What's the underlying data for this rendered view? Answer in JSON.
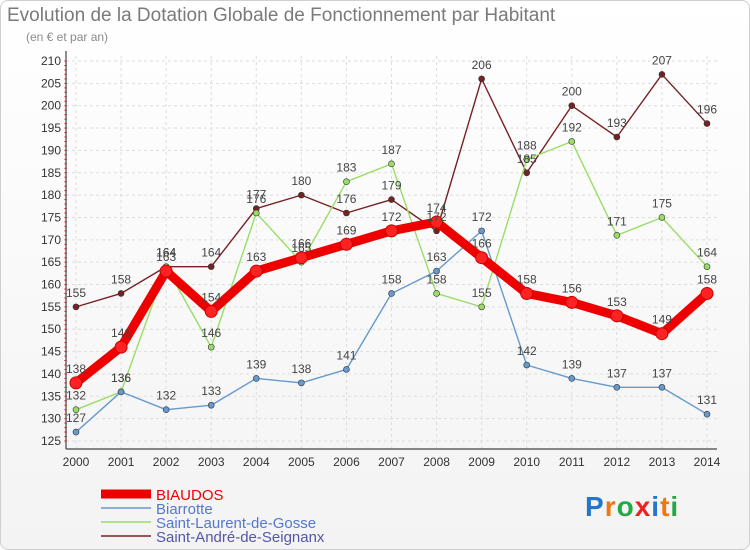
{
  "title": "Evolution de la Dotation Globale de Fonctionnement par Habitant",
  "subtitle": "(en € et par an)",
  "logo_text": "Proxiti",
  "colors": {
    "BIAUDOS": "#ee0000",
    "Biarrotte": "#6699cc",
    "Saint-Laurent-de-Gosse": "#99dd66",
    "Saint-André-de-Seignanx": "#772222"
  },
  "chart_data": {
    "type": "line",
    "title": "Evolution de la Dotation Globale de Fonctionnement par Habitant",
    "ylabel": "(en € et par an)",
    "xlabel": "",
    "x": [
      "2000",
      "2001",
      "2002",
      "2003",
      "2004",
      "2005",
      "2006",
      "2007",
      "2008",
      "2009",
      "2010",
      "2011",
      "2012",
      "2013",
      "2014"
    ],
    "ylim": [
      125,
      210
    ],
    "yticks": [
      125,
      130,
      135,
      140,
      145,
      150,
      155,
      160,
      165,
      170,
      175,
      180,
      185,
      190,
      195,
      200,
      205,
      210
    ],
    "legend_position": "bottom-left",
    "series": [
      {
        "name": "BIAUDOS",
        "values": [
          138,
          146,
          163,
          154,
          163,
          166,
          169,
          172,
          174,
          166,
          158,
          156,
          153,
          149,
          158
        ]
      },
      {
        "name": "Biarrotte",
        "values": [
          127,
          136,
          132,
          133,
          139,
          138,
          141,
          158,
          163,
          172,
          142,
          139,
          137,
          137,
          131
        ]
      },
      {
        "name": "Saint-Laurent-de-Gosse",
        "values": [
          132,
          136,
          164,
          146,
          176,
          165,
          183,
          187,
          158,
          155,
          188,
          192,
          171,
          175,
          164
        ]
      },
      {
        "name": "Saint-André-de-Seignanx",
        "values": [
          155,
          158,
          164,
          164,
          177,
          180,
          176,
          179,
          172,
          206,
          185,
          200,
          193,
          207,
          196
        ]
      }
    ]
  }
}
